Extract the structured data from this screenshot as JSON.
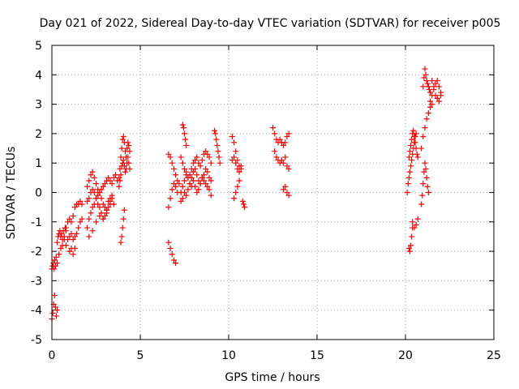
{
  "chart_data": {
    "type": "scatter",
    "title": "Day 021 of 2022, Sidereal Day-to-day VTEC variation (SDTVAR) for receiver p005",
    "xlabel": "GPS time / hours",
    "ylabel": "SDTVAR / TECUs",
    "xlim": [
      0,
      25
    ],
    "ylim": [
      -5,
      5
    ],
    "xticks": [
      0,
      5,
      10,
      15,
      20,
      25
    ],
    "yticks": [
      -5,
      -4,
      -3,
      -2,
      -1,
      0,
      1,
      2,
      3,
      4,
      5
    ],
    "grid": true,
    "marker": "+",
    "color": "#ff0000",
    "segments": [
      {
        "name": "s01",
        "x": [
          0.0,
          0.04,
          0.08,
          0.12,
          0.16,
          0.2,
          0.24
        ],
        "y": [
          -2.6,
          -2.5,
          -2.4,
          -2.6,
          -2.3,
          -2.5,
          -2.2
        ]
      },
      {
        "name": "s02",
        "x": [
          0.0,
          0.05,
          0.1,
          0.15,
          0.2,
          0.25,
          0.3
        ],
        "y": [
          -4.3,
          -4.1,
          -3.8,
          -3.5,
          -3.9,
          -4.2,
          -4.0
        ]
      },
      {
        "name": "s03",
        "x": [
          0.3,
          0.35,
          0.4,
          0.45,
          0.5,
          0.55,
          0.6,
          0.65,
          0.7,
          0.75,
          0.8
        ],
        "y": [
          -1.7,
          -1.5,
          -1.4,
          -1.3,
          -1.5,
          -1.4,
          -1.6,
          -1.3,
          -1.5,
          -1.2,
          -1.3
        ]
      },
      {
        "name": "s04",
        "x": [
          0.3,
          0.4,
          0.5,
          0.6,
          0.7
        ],
        "y": [
          -2.4,
          -2.1,
          -1.9,
          -1.8,
          -1.6
        ]
      },
      {
        "name": "s05",
        "x": [
          0.8,
          0.9,
          1.0,
          1.1,
          1.2,
          1.3,
          1.4,
          1.5,
          1.6,
          1.7
        ],
        "y": [
          -1.2,
          -1.0,
          -0.9,
          -1.0,
          -0.8,
          -0.5,
          -0.4,
          -0.4,
          -0.3,
          -0.4
        ]
      },
      {
        "name": "s06",
        "x": [
          0.8,
          0.9,
          1.0,
          1.1,
          1.2,
          1.3,
          1.4,
          1.5,
          1.6,
          1.7
        ],
        "y": [
          -1.8,
          -1.6,
          -1.5,
          -1.4,
          -1.6,
          -1.5,
          -1.4,
          -1.2,
          -1.0,
          -0.9
        ]
      },
      {
        "name": "s07",
        "x": [
          1.0,
          1.1,
          1.2,
          1.3
        ],
        "y": [
          -2.0,
          -1.9,
          -2.1,
          -1.9
        ]
      },
      {
        "name": "s08",
        "x": [
          2.0,
          2.1,
          2.2,
          2.3,
          2.4,
          2.5,
          2.6,
          2.7,
          2.8,
          2.9,
          3.0,
          3.1,
          3.2,
          3.3,
          3.4,
          3.5,
          3.6,
          3.7
        ],
        "y": [
          -1.2,
          -0.9,
          -0.7,
          -0.5,
          -0.4,
          -0.2,
          -0.1,
          0.0,
          0.1,
          0.2,
          0.3,
          0.4,
          0.5,
          0.4,
          0.3,
          0.5,
          0.6,
          0.4
        ]
      },
      {
        "name": "s09",
        "x": [
          2.0,
          2.1,
          2.2,
          2.3,
          2.4,
          2.5,
          2.6,
          2.7,
          2.8,
          2.9,
          3.0,
          3.1,
          3.2,
          3.3,
          3.4,
          3.5
        ],
        "y": [
          -0.3,
          -0.2,
          0.0,
          0.1,
          0.0,
          -0.2,
          -0.4,
          -0.5,
          -0.7,
          -0.9,
          -0.8,
          -0.6,
          -0.5,
          -0.3,
          -0.2,
          -0.4
        ]
      },
      {
        "name": "s10",
        "x": [
          2.0,
          2.1,
          2.2,
          2.3,
          2.4,
          2.5,
          2.6,
          2.7,
          2.8,
          2.9,
          3.0,
          3.1,
          3.2,
          3.3,
          3.4
        ],
        "y": [
          0.2,
          0.4,
          0.6,
          0.7,
          0.5,
          0.3,
          0.1,
          0.0,
          -0.2,
          -0.4,
          -0.5,
          -0.6,
          -0.3,
          -0.2,
          -0.1
        ]
      },
      {
        "name": "s11",
        "x": [
          2.1,
          2.3,
          2.5,
          2.7,
          2.9,
          3.1,
          3.3
        ],
        "y": [
          -1.5,
          -1.3,
          -1.0,
          -0.8,
          -0.9,
          -0.7,
          -0.4
        ]
      },
      {
        "name": "s12",
        "x": [
          3.8,
          3.85,
          3.9,
          3.95,
          4.0,
          4.05,
          4.1,
          4.15,
          4.2,
          4.25,
          4.3,
          4.35,
          4.4
        ],
        "y": [
          0.5,
          0.8,
          1.2,
          1.5,
          1.8,
          1.9,
          1.7,
          1.4,
          1.2,
          1.5,
          1.7,
          1.6,
          1.4
        ]
      },
      {
        "name": "s13",
        "x": [
          3.8,
          3.85,
          3.9,
          3.95,
          4.0,
          4.05,
          4.1,
          4.15,
          4.2,
          4.25,
          4.3,
          4.35,
          4.4
        ],
        "y": [
          0.2,
          0.4,
          0.6,
          0.9,
          1.0,
          1.1,
          0.9,
          0.7,
          0.8,
          1.0,
          1.2,
          1.0,
          0.8
        ]
      },
      {
        "name": "s14",
        "x": [
          3.9,
          3.95,
          4.0,
          4.05,
          4.1
        ],
        "y": [
          -1.7,
          -1.5,
          -1.2,
          -0.9,
          -0.6
        ]
      },
      {
        "name": "s15",
        "x": [
          6.6,
          6.7,
          6.8,
          6.9,
          7.0
        ],
        "y": [
          -1.7,
          -1.9,
          -2.1,
          -2.3,
          -2.4
        ]
      },
      {
        "name": "s16",
        "x": [
          6.6,
          6.7,
          6.8,
          6.9,
          7.0,
          7.1,
          7.2
        ],
        "y": [
          -0.5,
          -0.2,
          0.1,
          0.3,
          0.2,
          0.0,
          0.3
        ]
      },
      {
        "name": "s17",
        "x": [
          6.6,
          6.7,
          6.8,
          6.9,
          7.0,
          7.1
        ],
        "y": [
          1.3,
          1.2,
          1.0,
          0.8,
          0.6,
          0.4
        ]
      },
      {
        "name": "s18",
        "x": [
          7.4,
          7.45,
          7.5,
          7.55,
          7.6
        ],
        "y": [
          2.3,
          2.2,
          2.0,
          1.8,
          1.6
        ]
      },
      {
        "name": "s19",
        "x": [
          7.3,
          7.4,
          7.5,
          7.6,
          7.7,
          7.8,
          7.9,
          8.0,
          8.1,
          8.2,
          8.3,
          8.4,
          8.5,
          8.6,
          8.7,
          8.8,
          8.9,
          9.0
        ],
        "y": [
          0.0,
          0.2,
          0.4,
          0.6,
          0.5,
          0.3,
          0.5,
          0.7,
          0.8,
          0.6,
          0.4,
          0.3,
          0.5,
          0.6,
          0.8,
          0.7,
          0.5,
          0.4
        ]
      },
      {
        "name": "s20",
        "x": [
          7.3,
          7.4,
          7.5,
          7.6,
          7.7,
          7.8,
          7.9,
          8.0,
          8.1,
          8.2,
          8.3,
          8.4,
          8.5,
          8.6,
          8.7,
          8.8,
          8.9,
          9.0
        ],
        "y": [
          1.2,
          1.0,
          0.8,
          0.7,
          0.5,
          0.6,
          0.8,
          1.0,
          1.1,
          1.2,
          1.0,
          0.9,
          1.1,
          1.3,
          1.4,
          1.3,
          1.2,
          1.0
        ]
      },
      {
        "name": "s21",
        "x": [
          7.3,
          7.4,
          7.5,
          7.6,
          7.7,
          7.8,
          7.9,
          8.0,
          8.1,
          8.2,
          8.3,
          8.4,
          8.5,
          8.6,
          8.7,
          8.8,
          8.9,
          9.0
        ],
        "y": [
          -0.3,
          -0.2,
          0.0,
          -0.1,
          0.1,
          0.3,
          0.2,
          0.4,
          0.2,
          0.0,
          0.1,
          0.3,
          0.5,
          0.4,
          0.3,
          0.2,
          0.1,
          -0.1
        ]
      },
      {
        "name": "s22",
        "x": [
          9.2,
          9.25,
          9.3,
          9.35,
          9.4,
          9.45,
          9.5
        ],
        "y": [
          2.1,
          2.0,
          1.8,
          1.6,
          1.4,
          1.2,
          1.0
        ]
      },
      {
        "name": "s23",
        "x": [
          10.2,
          10.3,
          10.4,
          10.5,
          10.6,
          10.7
        ],
        "y": [
          1.9,
          1.7,
          1.4,
          1.1,
          0.9,
          0.8
        ]
      },
      {
        "name": "s24",
        "x": [
          10.2,
          10.3,
          10.4,
          10.5,
          10.6,
          10.7
        ],
        "y": [
          1.1,
          1.2,
          1.0,
          0.8,
          0.7,
          0.9
        ]
      },
      {
        "name": "s25",
        "x": [
          10.3,
          10.4,
          10.5,
          10.6
        ],
        "y": [
          -0.2,
          0.0,
          0.2,
          0.4
        ]
      },
      {
        "name": "s26",
        "x": [
          10.8,
          10.85,
          10.9
        ],
        "y": [
          -0.3,
          -0.4,
          -0.5
        ]
      },
      {
        "name": "s27",
        "x": [
          12.5,
          12.6,
          12.7,
          12.8,
          12.9,
          13.0,
          13.1,
          13.2,
          13.3,
          13.4
        ],
        "y": [
          2.2,
          2.0,
          1.8,
          1.7,
          1.8,
          1.7,
          1.6,
          1.7,
          1.9,
          2.0
        ]
      },
      {
        "name": "s28",
        "x": [
          12.6,
          12.7,
          12.8,
          12.9,
          13.0,
          13.1,
          13.2
        ],
        "y": [
          1.4,
          1.2,
          1.1,
          1.0,
          1.1,
          1.0,
          1.2
        ]
      },
      {
        "name": "s29",
        "x": [
          13.1,
          13.2,
          13.3,
          13.4
        ],
        "y": [
          0.1,
          0.2,
          0.0,
          -0.1
        ]
      },
      {
        "name": "s30",
        "x": [
          13.3,
          13.4
        ],
        "y": [
          0.9,
          0.8
        ]
      },
      {
        "name": "s31",
        "x": [
          20.1,
          20.15,
          20.2,
          20.25,
          20.3,
          20.35,
          20.4,
          20.45,
          20.5,
          20.55,
          20.6
        ],
        "y": [
          0.0,
          0.3,
          0.5,
          0.7,
          0.9,
          1.1,
          1.3,
          1.5,
          1.7,
          1.9,
          2.0
        ]
      },
      {
        "name": "s32",
        "x": [
          20.2,
          20.25,
          20.3,
          20.35,
          20.4,
          20.45,
          20.5,
          20.55,
          20.6,
          20.65,
          20.7
        ],
        "y": [
          1.2,
          1.4,
          1.6,
          1.8,
          2.0,
          2.1,
          1.9,
          1.7,
          1.5,
          1.3,
          1.2
        ]
      },
      {
        "name": "s33",
        "x": [
          20.2,
          20.25,
          20.3,
          20.35,
          20.4
        ],
        "y": [
          -1.9,
          -2.0,
          -1.8,
          -1.5,
          -1.2
        ]
      },
      {
        "name": "s34",
        "x": [
          20.4,
          20.5,
          20.6,
          20.7
        ],
        "y": [
          -1.0,
          -1.2,
          -1.1,
          -0.9
        ]
      },
      {
        "name": "s35",
        "x": [
          20.9,
          20.95,
          21.0,
          21.05,
          21.1,
          21.15,
          21.2,
          21.25,
          21.3
        ],
        "y": [
          -0.4,
          -0.1,
          0.3,
          0.7,
          1.0,
          0.8,
          0.5,
          0.2,
          0.0
        ]
      },
      {
        "name": "s36",
        "x": [
          20.9,
          21.0,
          21.1,
          21.2,
          21.3,
          21.4,
          21.5
        ],
        "y": [
          1.5,
          1.9,
          2.2,
          2.5,
          2.7,
          2.9,
          3.0
        ]
      },
      {
        "name": "s37",
        "x": [
          21.0,
          21.05,
          21.1,
          21.15,
          21.2,
          21.25,
          21.3,
          21.35,
          21.4
        ],
        "y": [
          3.6,
          3.9,
          4.2,
          4.0,
          3.8,
          3.7,
          3.6,
          3.5,
          3.4
        ]
      },
      {
        "name": "s38",
        "x": [
          21.4,
          21.5,
          21.6,
          21.7,
          21.8,
          21.9,
          22.0
        ],
        "y": [
          3.1,
          3.3,
          3.6,
          3.7,
          3.8,
          3.6,
          3.4
        ]
      },
      {
        "name": "s39",
        "x": [
          21.5,
          21.6,
          21.7,
          21.8,
          21.9,
          22.0
        ],
        "y": [
          3.8,
          3.5,
          3.3,
          3.2,
          3.1,
          3.3
        ]
      }
    ]
  }
}
